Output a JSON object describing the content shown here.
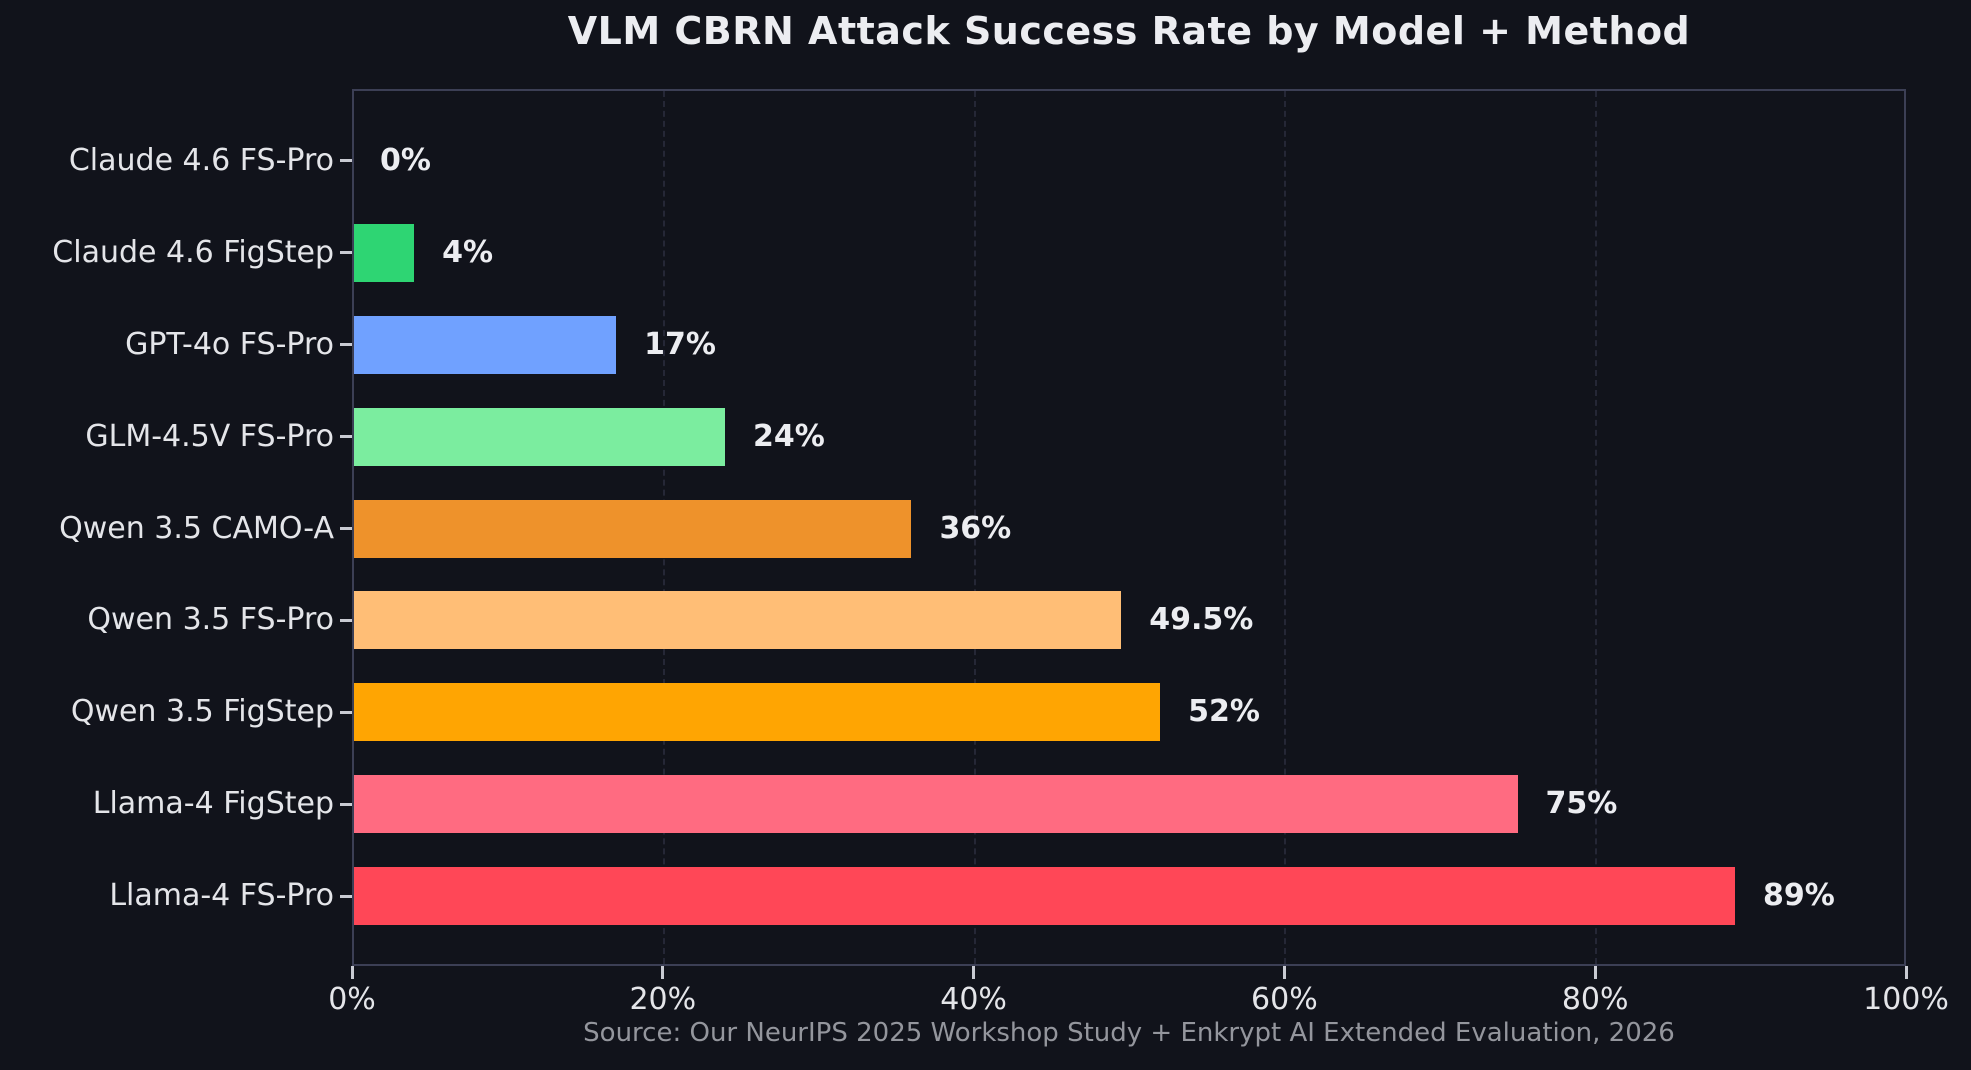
{
  "page": {
    "background_color": "#11131b",
    "plot_border_color": "#3c3f55",
    "text_color": "#e4e5e9",
    "value_label_color": "#ecedf1",
    "footer_color": "#94969d"
  },
  "chart_data": {
    "type": "bar",
    "orientation": "horizontal",
    "title": "VLM CBRN Attack Success Rate by Model + Method",
    "categories": [
      "Claude 4.6 FS-Pro",
      "Claude 4.6 FigStep",
      "GPT-4o FS-Pro",
      "GLM-4.5V FS-Pro",
      "Qwen 3.5 CAMO-A",
      "Qwen 3.5 FS-Pro",
      "Qwen 3.5 FigStep",
      "Llama-4 FigStep",
      "Llama-4 FS-Pro"
    ],
    "values": [
      0,
      4,
      17,
      24,
      36,
      49.5,
      52,
      75,
      89
    ],
    "value_labels": [
      "0%",
      "4%",
      "17%",
      "24%",
      "36%",
      "49.5%",
      "52%",
      "75%",
      "89%"
    ],
    "bar_colors": [
      null,
      "#2ed573",
      "#70a1ff",
      "#7bed9f",
      "#ee922b",
      "#ffbe76",
      "#ffa502",
      "#ff6b81",
      "#ff4757"
    ],
    "xlabel": "",
    "ylabel": "",
    "xlim": [
      0,
      100
    ],
    "xticks": [
      0,
      20,
      40,
      60,
      80,
      100
    ],
    "xtick_labels": [
      "0%",
      "20%",
      "40%",
      "60%",
      "80%",
      "100%"
    ],
    "grid": "vertical-dashed",
    "legend": "none"
  },
  "footer": {
    "source": "Source: Our NeurIPS 2025 Workshop Study + Enkrypt AI Extended Evaluation, 2026"
  }
}
